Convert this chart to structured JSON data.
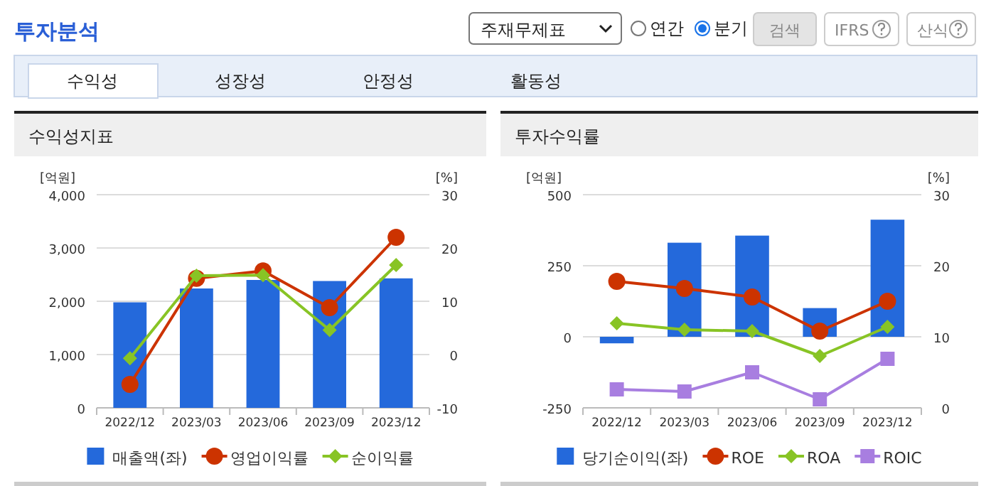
{
  "chart_data": [
    {
      "type": "other",
      "title": "투자분석",
      "annotations": [
        "주재무제표",
        "연간",
        "분기",
        "검색",
        "IFRS",
        "산식",
        "수익성",
        "성장성",
        "안정성",
        "활동성"
      ]
    },
    {
      "type": "bar",
      "title": "수익성지표",
      "ylabel": "[억원]",
      "y2label": "[%]",
      "categories": [
        "2022/12",
        "2023/03",
        "2023/06",
        "2023/09",
        "2023/12"
      ],
      "series": [
        {
          "name": "매출액(좌)",
          "type": "bar",
          "color": "#2469db",
          "values": [
            1980,
            2240,
            2400,
            2380,
            2430
          ]
        },
        {
          "name": "영업이익률",
          "type": "line",
          "axis": "y2",
          "marker": "circle",
          "color": "#cc3300",
          "values": [
            -5.6,
            14.3,
            15.7,
            8.8,
            22.0
          ]
        },
        {
          "name": "순이익률",
          "type": "line",
          "axis": "y2",
          "marker": "diamond",
          "color": "#88c425",
          "values": [
            -0.7,
            14.8,
            14.9,
            4.6,
            16.8
          ]
        }
      ],
      "ylim": [
        0,
        4000
      ],
      "yticks": [
        0,
        {
          "value": 1000,
          "label": "1,000"
        },
        {
          "value": 2000,
          "label": "2,000"
        },
        {
          "value": 3000,
          "label": "3,000"
        },
        {
          "value": 4000,
          "label": "4,000"
        }
      ],
      "y2lim": [
        -10,
        30
      ],
      "y2ticks": [
        -10,
        0,
        10,
        20,
        30
      ],
      "grid": "y",
      "legend": "bottom"
    },
    {
      "type": "bar",
      "title": "투자수익률",
      "ylabel": "[억원]",
      "y2label": "[%]",
      "categories": [
        "2022/12",
        "2023/03",
        "2023/06",
        "2023/09",
        "2023/12"
      ],
      "series": [
        {
          "name": "당기순이익(좌)",
          "type": "bar",
          "color": "#2469db",
          "values": [
            -23,
            331,
            356,
            101,
            412
          ]
        },
        {
          "name": "ROE",
          "type": "line",
          "axis": "y2",
          "marker": "circle",
          "color": "#cc3300",
          "values": [
            17.8,
            16.8,
            15.6,
            10.8,
            15.0
          ]
        },
        {
          "name": "ROA",
          "type": "line",
          "axis": "y2",
          "marker": "diamond",
          "color": "#88c425",
          "values": [
            11.9,
            11.0,
            10.8,
            7.3,
            11.4
          ]
        },
        {
          "name": "ROIC",
          "type": "line",
          "axis": "y2",
          "marker": "square",
          "color": "#a87ee0",
          "values": [
            2.6,
            2.3,
            5.0,
            1.2,
            6.9
          ]
        }
      ],
      "ylim": [
        -250,
        500
      ],
      "yticks": [
        -250,
        0,
        250,
        500
      ],
      "y2lim": [
        0,
        30
      ],
      "y2ticks": [
        0,
        10,
        20,
        30
      ],
      "grid": "y",
      "legend": "bottom"
    }
  ]
}
